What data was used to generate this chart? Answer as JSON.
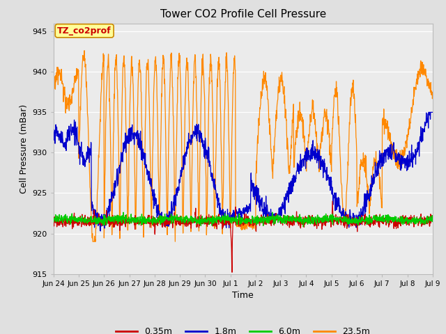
{
  "title": "Tower CO2 Profile Cell Pressure",
  "xlabel": "Time",
  "ylabel": "Cell Pressure (mBar)",
  "ylim": [
    915,
    946
  ],
  "yticks": [
    915,
    920,
    925,
    930,
    935,
    940,
    945
  ],
  "bg_color": "#e0e0e0",
  "plot_bg_color": "#ebebeb",
  "legend_colors": [
    "#cc0000",
    "#0000cc",
    "#00cc00",
    "#ff8800"
  ],
  "legend_labels": [
    "0.35m",
    "1.8m",
    "6.0m",
    "23.5m"
  ],
  "annotation_text": "TZ_co2prof",
  "annotation_color": "#cc0000",
  "annotation_bg": "#ffff99",
  "annotation_border": "#cc8800",
  "xtick_labels": [
    "Jun 24",
    "Jun 25",
    "Jun 26",
    "Jun 27",
    "Jun 28",
    "Jun 29",
    "Jun 30",
    "Jul 1",
    "Jul 2",
    "Jul 3",
    "Jul 4",
    "Jul 5",
    "Jul 6",
    "Jul 7",
    "Jul 8",
    "Jul 9"
  ],
  "figwidth": 6.4,
  "figheight": 4.8,
  "dpi": 100
}
